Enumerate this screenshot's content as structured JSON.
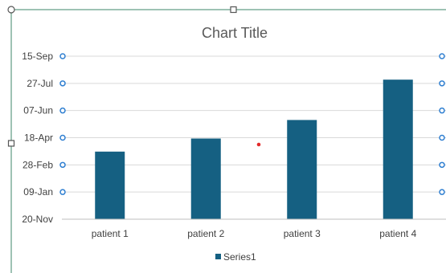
{
  "chart_data": {
    "type": "bar",
    "title": "Chart Title",
    "categories": [
      "patient 1",
      "patient 2",
      "patient 3",
      "patient 4"
    ],
    "series": [
      {
        "name": "Series1",
        "values": [
          "2023-03-24",
          "2023-04-17",
          "2023-05-21",
          "2023-08-03"
        ]
      }
    ],
    "y_axis": {
      "type": "date",
      "range": [
        "2022-11-20",
        "2023-09-15"
      ],
      "ticks": [
        "20-Nov",
        "09-Jan",
        "28-Feb",
        "18-Apr",
        "07-Jun",
        "27-Jul",
        "15-Sep"
      ]
    },
    "grid": true,
    "legend": "bottom",
    "colors": {
      "bar": "#156082",
      "gridline": "#d9d9d9",
      "axis_text": "#404040",
      "title_text": "#595959",
      "selection_border": "#7fae9b",
      "handle": "#2f7fd1",
      "marker": "#e32b2b"
    }
  }
}
